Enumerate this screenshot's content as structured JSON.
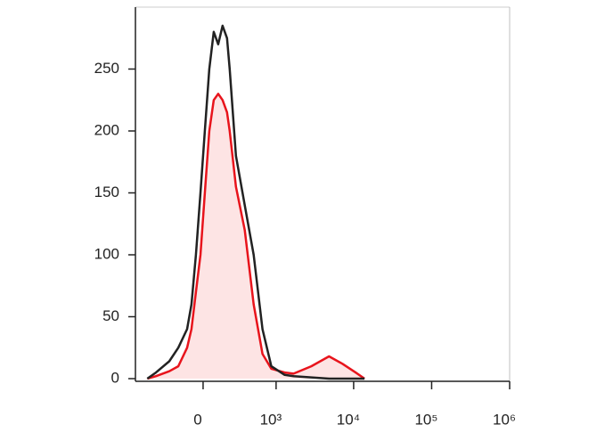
{
  "chart_data": {
    "type": "line",
    "xscale": "asinh",
    "x": [
      -588,
      -443,
      -275,
      -188,
      -115,
      -82,
      -50,
      -18,
      12,
      43,
      75,
      108,
      143,
      180,
      204,
      265,
      368,
      496,
      658,
      865,
      1295,
      1690,
      2862,
      4830,
      7170,
      10600,
      13770
    ],
    "series": [
      {
        "color": "#222222",
        "values": [
          0,
          5,
          14,
          25,
          40,
          60,
          100,
          150,
          200,
          250,
          280,
          270,
          285,
          275,
          250,
          180,
          140,
          100,
          40,
          10,
          3,
          2,
          1,
          0,
          0,
          0,
          0
        ]
      },
      {
        "color": "#e8141c",
        "fill": "#fde4e4",
        "values": [
          0,
          2,
          6,
          10,
          25,
          40,
          70,
          100,
          150,
          200,
          225,
          230,
          225,
          215,
          200,
          155,
          120,
          60,
          20,
          8,
          5,
          4,
          10,
          18,
          12,
          5,
          0
        ]
      }
    ],
    "xlim": [
      -850,
      1000000
    ],
    "xticks": [
      0,
      {
        "value": 1000,
        "label": "10³"
      },
      {
        "value": 10000,
        "label": "10⁴"
      },
      {
        "value": 100000,
        "label": "10⁵"
      },
      {
        "value": 1000000,
        "label": "10⁶"
      }
    ],
    "ylim": [
      0,
      300
    ],
    "yticks": [
      0,
      50,
      100,
      150,
      200,
      250
    ]
  }
}
